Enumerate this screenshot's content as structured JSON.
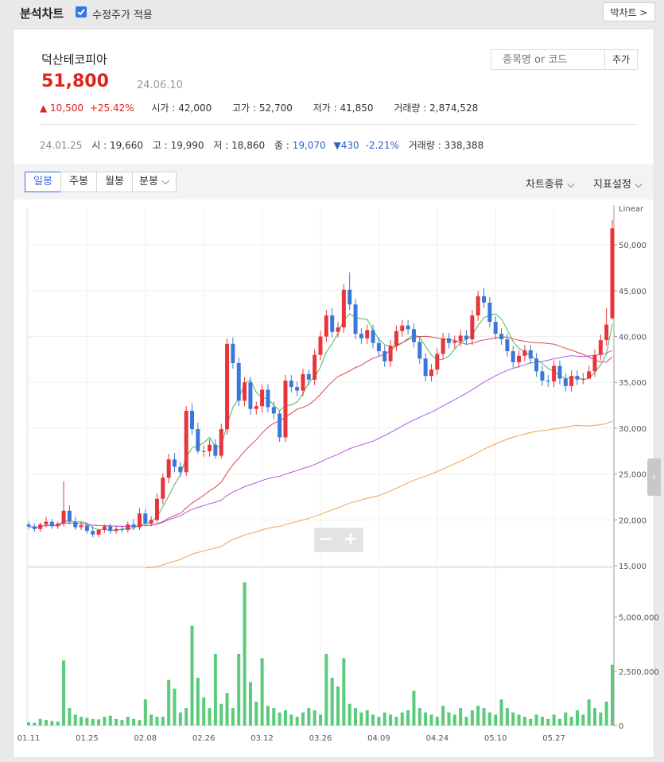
{
  "header": {
    "title": "분석차트",
    "adjusted_price_label": "수정주가 적용",
    "adjusted_price_checked": true,
    "big_chart_button": "박차트 >"
  },
  "stock": {
    "name": "덕산테코피아",
    "price": "51,800",
    "date": "24.06.10",
    "change": "▲ 10,500",
    "change_pct": "+25.42%",
    "open_label": "시가 :",
    "open": "42,000",
    "high_label": "고가 :",
    "high": "52,700",
    "low_label": "저가 :",
    "low": "41,850",
    "volume_label": "거래량 :",
    "volume": "2,874,528"
  },
  "search": {
    "placeholder": "종목명 or 코드",
    "add_button": "추가"
  },
  "hover_info": {
    "date": "24.01.25",
    "open_label": "시 :",
    "open": "19,660",
    "high_label": "고 :",
    "high": "19,990",
    "low_label": "저 :",
    "low": "18,860",
    "close_label": "종 :",
    "close": "19,070",
    "change": "▼430",
    "change_pct": "-2.21%",
    "volume_label": "거래량 :",
    "volume": "338,388"
  },
  "tabs": [
    {
      "label": "일봉",
      "active": true
    },
    {
      "label": "주봉",
      "active": false
    },
    {
      "label": "월봉",
      "active": false
    },
    {
      "label": "분봉 ⌵",
      "active": false
    }
  ],
  "right_menu": {
    "chart_type": "차트종류 ⌵",
    "indicator": "지표설정 ⌵"
  },
  "zoom": {
    "minus": "−",
    "plus": "+"
  },
  "colors": {
    "up": "#e8343a",
    "down": "#3a78d8",
    "ma5": "#46b85a",
    "ma20": "#e04848",
    "ma60": "#b05ae0",
    "ma120": "#f0a050",
    "volume": "#5acb7a"
  },
  "chart_data": {
    "type": "candlestick",
    "price_scale_label": "Linear",
    "y_ticks": [
      15000,
      20000,
      25000,
      30000,
      35000,
      40000,
      45000,
      50000
    ],
    "y_tick_labels": [
      "15,000",
      "20,000",
      "25,000",
      "30,000",
      "35,000",
      "40,000",
      "45,000",
      "50,000"
    ],
    "ylim": [
      15000,
      54000
    ],
    "volume_ticks": [
      0,
      2500000,
      5000000
    ],
    "volume_tick_labels": [
      "0",
      "2,500,000",
      "5,000,000"
    ],
    "x_labels": [
      "01.11",
      "01.25",
      "02.08",
      "02.26",
      "03.12",
      "03.26",
      "04.09",
      "04.24",
      "05.10",
      "05.27"
    ],
    "closes": [
      19300,
      19000,
      19500,
      19800,
      19300,
      19600,
      21000,
      19800,
      19200,
      19400,
      18800,
      18400,
      18900,
      19300,
      18800,
      19000,
      18900,
      19500,
      19200,
      20700,
      19600,
      20000,
      22300,
      24600,
      26600,
      25800,
      25200,
      31900,
      29900,
      27500,
      27500,
      28200,
      27000,
      29900,
      39200,
      37100,
      33000,
      35000,
      32100,
      32400,
      34200,
      32300,
      31600,
      29000,
      35200,
      34500,
      34100,
      35900,
      35300,
      38000,
      40000,
      42300,
      40500,
      41000,
      45100,
      43500,
      40300,
      39800,
      40700,
      39300,
      38400,
      37300,
      39000,
      40600,
      41200,
      40800,
      39400,
      37600,
      35700,
      36400,
      38100,
      39800,
      39300,
      39500,
      40100,
      39700,
      42300,
      44400,
      43700,
      41600,
      40300,
      39700,
      38400,
      37200,
      37900,
      38500,
      37600,
      36200,
      35200,
      35100,
      36800,
      35400,
      34600,
      35700,
      35300,
      35400,
      36200,
      38000,
      39600,
      41300,
      51800
    ],
    "opens": [
      19500,
      19300,
      19000,
      19500,
      19800,
      19300,
      19600,
      21000,
      19800,
      19200,
      19400,
      18800,
      18400,
      18900,
      19300,
      18800,
      19000,
      18900,
      19500,
      19200,
      20700,
      19600,
      20000,
      22300,
      24600,
      26600,
      25800,
      25200,
      31900,
      29900,
      27500,
      27500,
      28200,
      27000,
      29900,
      39200,
      37100,
      33000,
      35000,
      32100,
      32400,
      34200,
      32300,
      31600,
      29000,
      35200,
      34500,
      34100,
      35900,
      35300,
      38000,
      40000,
      42300,
      40500,
      41000,
      45100,
      43500,
      40300,
      39800,
      40700,
      39300,
      38400,
      37300,
      39000,
      40600,
      41200,
      40800,
      39400,
      37600,
      35700,
      36400,
      38100,
      39800,
      39300,
      39500,
      40100,
      39700,
      42300,
      44400,
      43700,
      41600,
      40300,
      39700,
      38400,
      37200,
      37900,
      38500,
      37600,
      36200,
      35200,
      35100,
      36800,
      35400,
      34600,
      35700,
      35300,
      35400,
      36200,
      38000,
      39600,
      42000
    ],
    "highs": [
      19800,
      19600,
      19700,
      20300,
      20100,
      19800,
      24200,
      21600,
      20300,
      19800,
      19700,
      19300,
      19000,
      19500,
      19600,
      19300,
      19400,
      19800,
      20100,
      21300,
      21200,
      20400,
      22900,
      25100,
      27200,
      27300,
      26300,
      32400,
      32700,
      30600,
      28100,
      28800,
      28800,
      30500,
      39800,
      39900,
      37700,
      35600,
      35600,
      32900,
      34800,
      34800,
      32900,
      31900,
      35800,
      35800,
      35100,
      36500,
      36400,
      38600,
      40600,
      42900,
      43100,
      41600,
      45700,
      47000,
      44100,
      40900,
      41300,
      41300,
      39900,
      39000,
      39600,
      41200,
      41800,
      41800,
      41400,
      40000,
      38200,
      37000,
      38700,
      40400,
      40400,
      40100,
      40700,
      40700,
      42900,
      45000,
      45300,
      44300,
      42200,
      40900,
      40300,
      39000,
      38500,
      39100,
      39100,
      38200,
      36800,
      35800,
      37400,
      37400,
      36000,
      36300,
      36300,
      36000,
      36800,
      38600,
      40200,
      43100,
      52700
    ],
    "lows": [
      19000,
      18700,
      18700,
      19200,
      19000,
      19000,
      19300,
      19500,
      18900,
      18900,
      18500,
      18100,
      18100,
      18600,
      18500,
      18500,
      18600,
      18600,
      18900,
      18900,
      19300,
      19300,
      19700,
      21700,
      24000,
      25200,
      24700,
      24800,
      29300,
      27200,
      26900,
      26900,
      26700,
      26700,
      29300,
      36500,
      32400,
      32400,
      31500,
      31500,
      31700,
      31700,
      31000,
      28500,
      28500,
      33900,
      33500,
      33500,
      34700,
      34700,
      37400,
      39400,
      39900,
      39900,
      40400,
      42900,
      39700,
      39200,
      39200,
      38700,
      37800,
      36700,
      36700,
      38400,
      40000,
      40200,
      38800,
      37000,
      35100,
      35100,
      35800,
      37500,
      38700,
      38700,
      38900,
      39100,
      39100,
      41700,
      43100,
      41000,
      39700,
      39100,
      37800,
      36600,
      36600,
      37300,
      37000,
      35600,
      34600,
      34500,
      34500,
      34800,
      34000,
      34000,
      34700,
      34800,
      35600,
      35600,
      37400,
      39000,
      41850
    ],
    "volumes": [
      150000,
      120000,
      300000,
      250000,
      200000,
      180000,
      3000000,
      800000,
      500000,
      400000,
      350000,
      300000,
      280000,
      400000,
      450000,
      300000,
      250000,
      400000,
      300000,
      250000,
      1200000,
      500000,
      400000,
      400000,
      2100000,
      1700000,
      600000,
      800000,
      4600000,
      2200000,
      1300000,
      800000,
      3300000,
      1000000,
      1500000,
      800000,
      3300000,
      6600000,
      2000000,
      1100000,
      3100000,
      900000,
      800000,
      600000,
      700000,
      500000,
      400000,
      600000,
      800000,
      700000,
      500000,
      3300000,
      2200000,
      1800000,
      3100000,
      1000000,
      800000,
      600000,
      700000,
      500000,
      400000,
      600000,
      500000,
      400000,
      600000,
      700000,
      1600000,
      800000,
      600000,
      500000,
      400000,
      900000,
      600000,
      500000,
      800000,
      400000,
      700000,
      900000,
      800000,
      600000,
      500000,
      1200000,
      800000,
      600000,
      500000,
      400000,
      300000,
      500000,
      400000,
      300000,
      500000,
      300000,
      600000,
      400000,
      700000,
      500000,
      1200000,
      800000,
      600000,
      1100000,
      2800000
    ],
    "series": [
      {
        "name": "MA5",
        "type": "line"
      },
      {
        "name": "MA20",
        "type": "line"
      },
      {
        "name": "MA60",
        "type": "line"
      },
      {
        "name": "MA120",
        "type": "line"
      }
    ]
  }
}
